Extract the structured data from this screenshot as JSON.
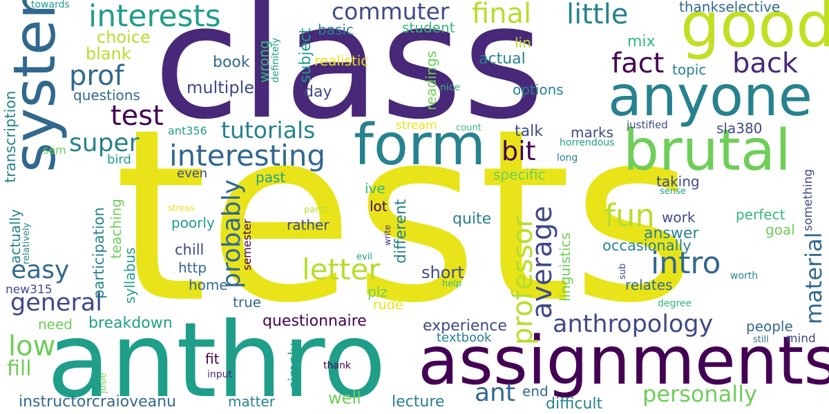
{
  "colors": {
    "background": "#ffffff",
    "palette": [
      "#440154",
      "#482878",
      "#3e4989",
      "#31688e",
      "#26828e",
      "#1f9e89",
      "#35b779",
      "#6ece58",
      "#b5de2b",
      "#e8e419"
    ]
  },
  "words": [
    {
      "text": "tests",
      "color": "#e8e419"
    },
    {
      "text": "class",
      "color": "#482878"
    },
    {
      "text": "anthro",
      "color": "#1f9e89"
    },
    {
      "text": "assignments",
      "color": "#440154"
    },
    {
      "text": "systems",
      "color": "#31688e"
    },
    {
      "text": "good",
      "color": "#c2df23"
    },
    {
      "text": "anyone",
      "color": "#26828e"
    },
    {
      "text": "form",
      "color": "#26828e"
    },
    {
      "text": "brutal",
      "color": "#6ece58"
    },
    {
      "text": "interests",
      "color": "#1f9e89"
    },
    {
      "text": "commuter",
      "color": "#3e4989"
    },
    {
      "text": "final",
      "color": "#b5de2b"
    },
    {
      "text": "little",
      "color": "#26828e"
    },
    {
      "text": "fact",
      "color": "#440154"
    },
    {
      "text": "back",
      "color": "#482878"
    },
    {
      "text": "prof",
      "color": "#31688e"
    },
    {
      "text": "test",
      "color": "#440154"
    },
    {
      "text": "interesting",
      "color": "#31688e"
    },
    {
      "text": "super",
      "color": "#26828e"
    },
    {
      "text": "tutorials",
      "color": "#26828e"
    },
    {
      "text": "bit",
      "color": "#440154"
    },
    {
      "text": "fun",
      "color": "#b5de2b"
    },
    {
      "text": "easy",
      "color": "#31688e"
    },
    {
      "text": "letter",
      "color": "#b5de2b"
    },
    {
      "text": "intro",
      "color": "#31688e"
    },
    {
      "text": "general",
      "color": "#3e4989"
    },
    {
      "text": "anthropology",
      "color": "#3e4989"
    },
    {
      "text": "professor",
      "color": "#b5de2b"
    },
    {
      "text": "average",
      "color": "#3e4989"
    },
    {
      "text": "probably",
      "color": "#31688e"
    },
    {
      "text": "material",
      "color": "#31688e"
    },
    {
      "text": "low",
      "color": "#6ece58"
    },
    {
      "text": "ant",
      "color": "#31688e"
    },
    {
      "text": "personally",
      "color": "#6ece58"
    },
    {
      "text": "choice",
      "color": "#b5de2b"
    },
    {
      "text": "blank",
      "color": "#b5de2b"
    },
    {
      "text": "multiple",
      "color": "#3e4989"
    },
    {
      "text": "questions",
      "color": "#31688e"
    },
    {
      "text": "book",
      "color": "#31688e"
    },
    {
      "text": "day",
      "color": "#3e4989"
    },
    {
      "text": "readings",
      "color": "#6ece58"
    },
    {
      "text": "options",
      "color": "#26828e"
    },
    {
      "text": "actual",
      "color": "#26828e"
    },
    {
      "text": "topic",
      "color": "#26828e"
    },
    {
      "text": "mix",
      "color": "#35b779"
    },
    {
      "text": "thankselective",
      "color": "#31688e"
    },
    {
      "text": "student",
      "color": "#35b779"
    },
    {
      "text": "basic",
      "color": "#26828e"
    },
    {
      "text": "subject",
      "color": "#1f9e89"
    },
    {
      "text": "realistic",
      "color": "#e8e419"
    },
    {
      "text": "wrong",
      "color": "#35b779"
    },
    {
      "text": "definitely",
      "color": "#1f9e89"
    },
    {
      "text": "lin",
      "color": "#b5de2b"
    },
    {
      "text": "nice",
      "color": "#35b779"
    },
    {
      "text": "towards",
      "color": "#1f9e89"
    },
    {
      "text": "transcription",
      "color": "#26828e"
    },
    {
      "text": "ant356",
      "color": "#1f9e89"
    },
    {
      "text": "stream",
      "color": "#e8e419"
    },
    {
      "text": "count",
      "color": "#35b779"
    },
    {
      "text": "talk",
      "color": "#3e4989"
    },
    {
      "text": "marks",
      "color": "#3e4989"
    },
    {
      "text": "justified",
      "color": "#3e4989"
    },
    {
      "text": "sla380",
      "color": "#3e4989"
    },
    {
      "text": "horrendous",
      "color": "#1f9e89"
    },
    {
      "text": "long",
      "color": "#26828e"
    },
    {
      "text": "sem",
      "color": "#6ece58"
    },
    {
      "text": "bird",
      "color": "#1f9e89"
    },
    {
      "text": "even",
      "color": "#3e4989"
    },
    {
      "text": "past",
      "color": "#1f9e89"
    },
    {
      "text": "specific",
      "color": "#6ece58"
    },
    {
      "text": "taking",
      "color": "#3e4989"
    },
    {
      "text": "sense",
      "color": "#1f9e89"
    },
    {
      "text": "something",
      "color": "#3e4989"
    },
    {
      "text": "ive",
      "color": "#35b779"
    },
    {
      "text": "lot",
      "color": "#440154"
    },
    {
      "text": "different",
      "color": "#26828e"
    },
    {
      "text": "stress",
      "color": "#e8e419"
    },
    {
      "text": "parts",
      "color": "#b5de2b"
    },
    {
      "text": "participation",
      "color": "#26828e"
    },
    {
      "text": "teaching",
      "color": "#6ece58"
    },
    {
      "text": "actually",
      "color": "#26828e"
    },
    {
      "text": "relatively",
      "color": "#26828e"
    },
    {
      "text": "syllabus",
      "color": "#1f9e89"
    },
    {
      "text": "poorly",
      "color": "#1f9e89"
    },
    {
      "text": "rather",
      "color": "#3e4989"
    },
    {
      "text": "quite",
      "color": "#26828e"
    },
    {
      "text": "linguistics",
      "color": "#6ece58"
    },
    {
      "text": "work",
      "color": "#3e4989"
    },
    {
      "text": "perfect",
      "color": "#35b779"
    },
    {
      "text": "goal",
      "color": "#6ece58"
    },
    {
      "text": "answer",
      "color": "#26828e"
    },
    {
      "text": "occasionally",
      "color": "#26828e"
    },
    {
      "text": "chill",
      "color": "#3e4989"
    },
    {
      "text": "semester",
      "color": "#440154"
    },
    {
      "text": "write",
      "color": "#482878"
    },
    {
      "text": "http",
      "color": "#31688e"
    },
    {
      "text": "short",
      "color": "#3e4989"
    },
    {
      "text": "home",
      "color": "#31688e"
    },
    {
      "text": "evil",
      "color": "#1f9e89"
    },
    {
      "text": "sub",
      "color": "#3e4989"
    },
    {
      "text": "relates",
      "color": "#31688e"
    },
    {
      "text": "worth",
      "color": "#26828e"
    },
    {
      "text": "new315",
      "color": "#3e4989"
    },
    {
      "text": "plz",
      "color": "#6ece58"
    },
    {
      "text": "help",
      "color": "#35b779"
    },
    {
      "text": "true",
      "color": "#31688e"
    },
    {
      "text": "rude",
      "color": "#e8e419"
    },
    {
      "text": "degree",
      "color": "#35b779"
    },
    {
      "text": "need",
      "color": "#6ece58"
    },
    {
      "text": "breakdown",
      "color": "#1f9e89"
    },
    {
      "text": "questionnaire",
      "color": "#440154"
    },
    {
      "text": "experience",
      "color": "#3e4989"
    },
    {
      "text": "people",
      "color": "#31688e"
    },
    {
      "text": "mind",
      "color": "#3e4989"
    },
    {
      "text": "fill",
      "color": "#6ece58"
    },
    {
      "text": "simply",
      "color": "#1f9e89"
    },
    {
      "text": "textbook",
      "color": "#26828e"
    },
    {
      "text": "still",
      "color": "#31688e"
    },
    {
      "text": "fit",
      "color": "#440154"
    },
    {
      "text": "thank",
      "color": "#440154"
    },
    {
      "text": "josie",
      "color": "#6ece58"
    },
    {
      "text": "input",
      "color": "#482878"
    },
    {
      "text": "instructorcraioveanu",
      "color": "#31688e"
    },
    {
      "text": "matter",
      "color": "#26828e"
    },
    {
      "text": "well",
      "color": "#6ece58"
    },
    {
      "text": "lecture",
      "color": "#26828e"
    },
    {
      "text": "end",
      "color": "#31688e"
    },
    {
      "text": "difficult",
      "color": "#26828e"
    }
  ]
}
